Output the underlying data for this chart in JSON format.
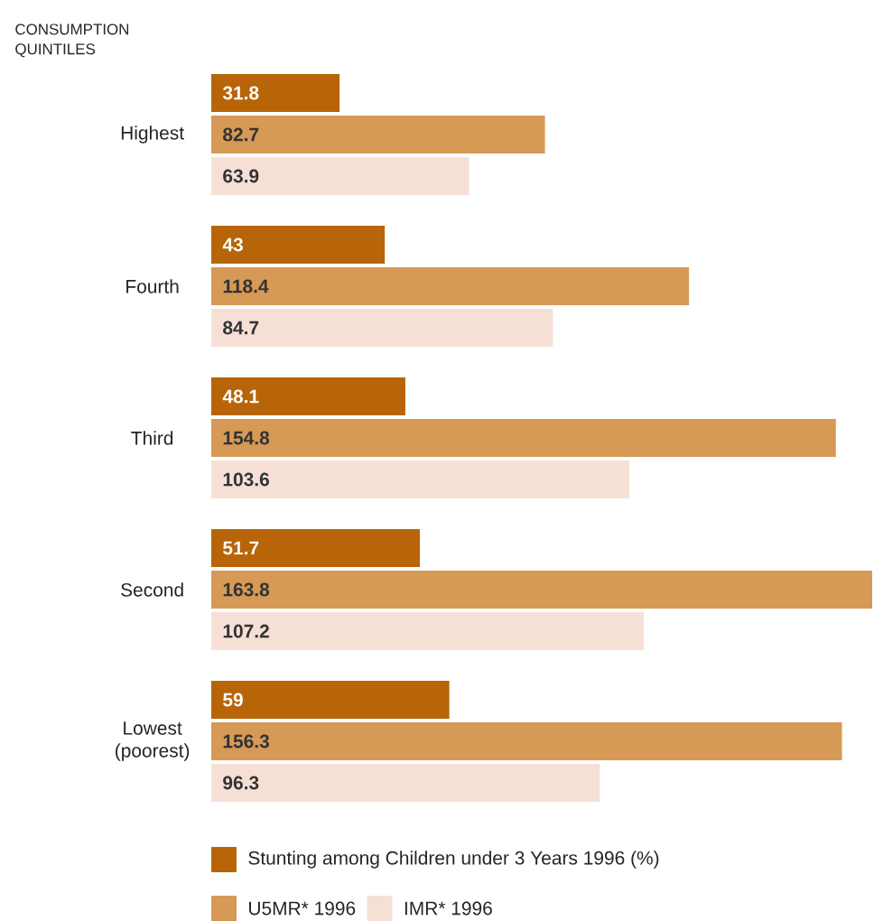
{
  "chart_data": {
    "type": "bar",
    "orientation": "horizontal",
    "ylabel": "CONSUMPTION QUINTILES",
    "categories": [
      "Highest",
      "Fourth",
      "Third",
      "Second",
      "Lowest (poorest)"
    ],
    "series": [
      {
        "name": "Stunting among Children under 3 Years 1996 (%)",
        "color": "#b8650a",
        "values": [
          31.8,
          43,
          48.1,
          51.7,
          59
        ]
      },
      {
        "name": "U5MR* 1996",
        "color": "#d69956",
        "values": [
          82.7,
          118.4,
          154.8,
          163.8,
          156.3
        ]
      },
      {
        "name": "IMR* 1996",
        "color": "#f6e0d6",
        "values": [
          63.9,
          84.7,
          103.6,
          107.2,
          96.3
        ]
      }
    ],
    "data_labels": true,
    "legend": "bottom"
  }
}
